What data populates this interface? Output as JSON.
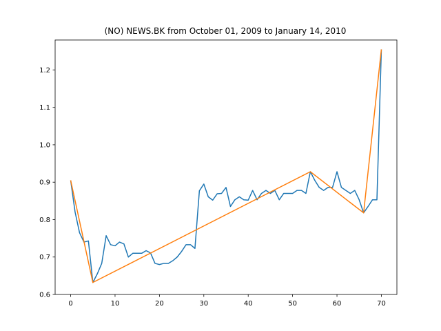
{
  "chart_data": {
    "type": "line",
    "title": "(NO) NEWS.BK from October 01, 2009 to January 14, 2010",
    "xlabel": "",
    "ylabel": "",
    "xlim": [
      -3.5,
      73.5
    ],
    "ylim": [
      0.6,
      1.28
    ],
    "xticks": [
      0,
      10,
      20,
      30,
      40,
      50,
      60,
      70
    ],
    "yticks": [
      0.6,
      0.7,
      0.8,
      0.9,
      1.0,
      1.1,
      1.2
    ],
    "ytick_labels": [
      "0.6",
      "0.7",
      "0.8",
      "0.9",
      "1.0",
      "1.1",
      "1.2"
    ],
    "grid": false,
    "legend": "none",
    "series": [
      {
        "color": "#1f77b4",
        "x": [
          0,
          1,
          2,
          3,
          4,
          5,
          6,
          7,
          8,
          9,
          10,
          11,
          12,
          13,
          14,
          15,
          16,
          17,
          18,
          19,
          20,
          21,
          22,
          23,
          24,
          25,
          26,
          27,
          28,
          29,
          30,
          31,
          32,
          33,
          34,
          35,
          36,
          37,
          38,
          39,
          40,
          41,
          42,
          43,
          44,
          45,
          46,
          47,
          48,
          49,
          50,
          51,
          52,
          53,
          54,
          55,
          56,
          57,
          58,
          59,
          60,
          61,
          62,
          63,
          64,
          65,
          66,
          67,
          68,
          69,
          70
        ],
        "y": [
          0.905,
          0.82,
          0.765,
          0.74,
          0.743,
          0.632,
          0.655,
          0.683,
          0.757,
          0.733,
          0.73,
          0.74,
          0.735,
          0.7,
          0.71,
          0.71,
          0.71,
          0.717,
          0.711,
          0.683,
          0.68,
          0.683,
          0.683,
          0.69,
          0.7,
          0.715,
          0.733,
          0.733,
          0.723,
          0.877,
          0.895,
          0.861,
          0.852,
          0.869,
          0.87,
          0.886,
          0.835,
          0.853,
          0.861,
          0.853,
          0.852,
          0.878,
          0.853,
          0.87,
          0.878,
          0.87,
          0.878,
          0.853,
          0.87,
          0.87,
          0.87,
          0.878,
          0.878,
          0.87,
          0.928,
          0.905,
          0.886,
          0.878,
          0.886,
          0.886,
          0.928,
          0.886,
          0.878,
          0.87,
          0.878,
          0.853,
          0.818,
          0.835,
          0.853,
          0.853,
          1.255
        ]
      },
      {
        "color": "#ff7f0e",
        "x": [
          0,
          5,
          54,
          66,
          70
        ],
        "y": [
          0.905,
          0.632,
          0.928,
          0.818,
          1.255
        ]
      }
    ]
  }
}
